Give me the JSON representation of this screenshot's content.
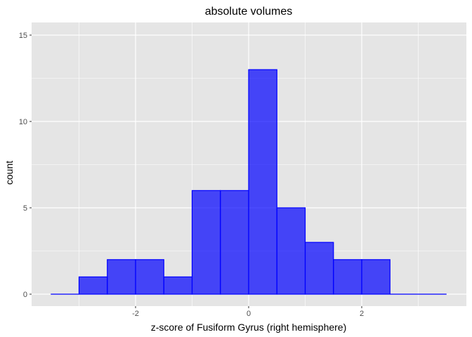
{
  "chart_data": {
    "type": "bar",
    "title": "absolute volumes",
    "xlabel": "z-score of Fusiform Gyrus (right hemisphere)",
    "ylabel": "count",
    "bin_width": 0.5,
    "bins": [
      {
        "x0": -3.5,
        "x1": -3.0,
        "count": 0
      },
      {
        "x0": -3.0,
        "x1": -2.5,
        "count": 1
      },
      {
        "x0": -2.5,
        "x1": -2.0,
        "count": 2
      },
      {
        "x0": -2.0,
        "x1": -1.5,
        "count": 2
      },
      {
        "x0": -1.5,
        "x1": -1.0,
        "count": 1
      },
      {
        "x0": -1.0,
        "x1": -0.5,
        "count": 6
      },
      {
        "x0": -0.5,
        "x1": 0.0,
        "count": 6
      },
      {
        "x0": 0.0,
        "x1": 0.5,
        "count": 13
      },
      {
        "x0": 0.5,
        "x1": 1.0,
        "count": 5
      },
      {
        "x0": 1.0,
        "x1": 1.5,
        "count": 3
      },
      {
        "x0": 1.5,
        "x1": 2.0,
        "count": 2
      },
      {
        "x0": 2.0,
        "x1": 2.5,
        "count": 2
      },
      {
        "x0": 2.5,
        "x1": 3.0,
        "count": 0
      },
      {
        "x0": 3.0,
        "x1": 3.5,
        "count": 0
      }
    ],
    "xlim": [
      -3.5,
      3.5
    ],
    "ylim": [
      0,
      15
    ],
    "x_ticks": [
      -2,
      0,
      2
    ],
    "x_tick_labels": [
      "-2",
      "0",
      "2"
    ],
    "y_ticks": [
      0,
      5,
      10,
      15
    ],
    "y_tick_labels": [
      "0",
      "5",
      "10",
      "15"
    ],
    "grid": true,
    "colors": {
      "panel_background": "#e5e5e5",
      "grid": "#ffffff",
      "bar_fill": "#0000ff",
      "bar_fill_opacity": 0.7,
      "bar_outline": "#0000ff"
    }
  }
}
